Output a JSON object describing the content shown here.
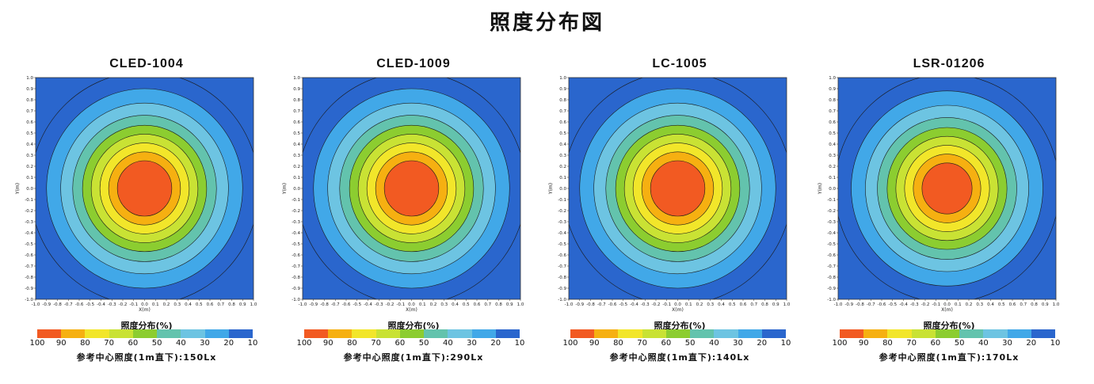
{
  "page_title": "照度分布図",
  "colormap": [
    "#f25a22",
    "#f6b011",
    "#f2e62a",
    "#c9e234",
    "#8ccd30",
    "#63c3ad",
    "#6dc4e2",
    "#41a8e8",
    "#2a66cd"
  ],
  "chart_data": [
    {
      "type": "heatmap",
      "title": "CLED-1004",
      "xlabel": "X(m)",
      "ylabel": "Y(m)",
      "xlim": [
        -1.0,
        1.0
      ],
      "ylim": [
        -1.0,
        1.0
      ],
      "x_ticks": [
        "-1.0",
        "-0.9",
        "-0.8",
        "-0.7",
        "-0.6",
        "-0.5",
        "-0.4",
        "-0.3",
        "-0.2",
        "-0.1",
        "0.0",
        "0.1",
        "0.2",
        "0.3",
        "0.4",
        "0.5",
        "0.6",
        "0.7",
        "0.8",
        "0.9",
        "1.0"
      ],
      "y_ticks": [
        "1.0",
        "0.9",
        "0.8",
        "0.7",
        "0.6",
        "0.5",
        "0.4",
        "0.3",
        "0.2",
        "0.1",
        "0.0",
        "-0.1",
        "-0.2",
        "-0.3",
        "-0.4",
        "-0.5",
        "-0.6",
        "-0.7",
        "-0.8",
        "-0.9",
        "-1.0"
      ],
      "contour_levels_pct": [
        90,
        80,
        70,
        60,
        50,
        40,
        30,
        20,
        10
      ],
      "contour_radii_m": [
        0.25,
        0.33,
        0.41,
        0.49,
        0.57,
        0.66,
        0.77,
        0.9,
        1.05
      ],
      "legend": {
        "title": "照度分布(%)",
        "labels": [
          "100",
          "90",
          "80",
          "70",
          "60",
          "50",
          "40",
          "30",
          "20",
          "10"
        ]
      },
      "reference": "参考中心照度(1m直下):150Lx"
    },
    {
      "type": "heatmap",
      "title": "CLED-1009",
      "xlabel": "X(m)",
      "ylabel": "Y(m)",
      "xlim": [
        -1.0,
        1.0
      ],
      "ylim": [
        -1.0,
        1.0
      ],
      "x_ticks": [
        "-1.0",
        "-0.9",
        "-0.8",
        "-0.7",
        "-0.6",
        "-0.5",
        "-0.4",
        "-0.3",
        "-0.2",
        "-0.1",
        "0.0",
        "0.1",
        "0.2",
        "0.3",
        "0.4",
        "0.5",
        "0.6",
        "0.7",
        "0.8",
        "0.9",
        "1.0"
      ],
      "y_ticks": [
        "1.0",
        "0.9",
        "0.8",
        "0.7",
        "0.6",
        "0.5",
        "0.4",
        "0.3",
        "0.2",
        "0.1",
        "0.0",
        "-0.1",
        "-0.2",
        "-0.3",
        "-0.4",
        "-0.5",
        "-0.6",
        "-0.7",
        "-0.8",
        "-0.9",
        "-1.0"
      ],
      "contour_levels_pct": [
        90,
        80,
        70,
        60,
        50,
        40,
        30,
        20,
        10
      ],
      "contour_radii_m": [
        0.25,
        0.33,
        0.41,
        0.49,
        0.57,
        0.66,
        0.77,
        0.9,
        1.05
      ],
      "legend": {
        "title": "照度分布(%)",
        "labels": [
          "100",
          "90",
          "80",
          "70",
          "60",
          "50",
          "40",
          "30",
          "20",
          "10"
        ]
      },
      "reference": "参考中心照度(1m直下):290Lx"
    },
    {
      "type": "heatmap",
      "title": "LC-1005",
      "xlabel": "X(m)",
      "ylabel": "Y(m)",
      "xlim": [
        -1.0,
        1.0
      ],
      "ylim": [
        -1.0,
        1.0
      ],
      "x_ticks": [
        "-1.0",
        "-0.9",
        "-0.8",
        "-0.7",
        "-0.6",
        "-0.5",
        "-0.4",
        "-0.3",
        "-0.2",
        "-0.1",
        "0.0",
        "0.1",
        "0.2",
        "0.3",
        "0.4",
        "0.5",
        "0.6",
        "0.7",
        "0.8",
        "0.9",
        "1.0"
      ],
      "y_ticks": [
        "1.0",
        "0.9",
        "0.8",
        "0.7",
        "0.6",
        "0.5",
        "0.4",
        "0.3",
        "0.2",
        "0.1",
        "0.0",
        "-0.1",
        "-0.2",
        "-0.3",
        "-0.4",
        "-0.5",
        "-0.6",
        "-0.7",
        "-0.8",
        "-0.9",
        "-1.0"
      ],
      "contour_levels_pct": [
        90,
        80,
        70,
        60,
        50,
        40,
        30,
        20,
        10
      ],
      "contour_radii_m": [
        0.25,
        0.33,
        0.41,
        0.49,
        0.57,
        0.66,
        0.77,
        0.9,
        1.05
      ],
      "legend": {
        "title": "照度分布(%)",
        "labels": [
          "100",
          "90",
          "80",
          "70",
          "60",
          "50",
          "40",
          "30",
          "20",
          "10"
        ]
      },
      "reference": "参考中心照度(1m直下):140Lx"
    },
    {
      "type": "heatmap",
      "title": "LSR-01206",
      "xlabel": "X(m)",
      "ylabel": "Y(m)",
      "xlim": [
        -1.0,
        1.0
      ],
      "ylim": [
        -1.0,
        1.0
      ],
      "x_ticks": [
        "-1.0",
        "-0.9",
        "-0.8",
        "-0.7",
        "-0.6",
        "-0.5",
        "-0.4",
        "-0.3",
        "-0.2",
        "-0.1",
        "0.0",
        "0.1",
        "0.2",
        "0.3",
        "0.4",
        "0.5",
        "0.6",
        "0.7",
        "0.8",
        "0.9",
        "1.0"
      ],
      "y_ticks": [
        "1.0",
        "0.9",
        "0.8",
        "0.7",
        "0.6",
        "0.5",
        "0.4",
        "0.3",
        "0.2",
        "0.1",
        "0.0",
        "-0.1",
        "-0.2",
        "-0.3",
        "-0.4",
        "-0.5",
        "-0.6",
        "-0.7",
        "-0.8",
        "-0.9",
        "-1.0"
      ],
      "contour_levels_pct": [
        90,
        80,
        70,
        60,
        50,
        40,
        30,
        20,
        10
      ],
      "contour_radii_m": [
        0.23,
        0.31,
        0.39,
        0.47,
        0.55,
        0.64,
        0.75,
        0.88,
        1.03
      ],
      "legend": {
        "title": "照度分布(%)",
        "labels": [
          "100",
          "90",
          "80",
          "70",
          "60",
          "50",
          "40",
          "30",
          "20",
          "10"
        ]
      },
      "reference": "参考中心照度(1m直下):170Lx"
    }
  ]
}
